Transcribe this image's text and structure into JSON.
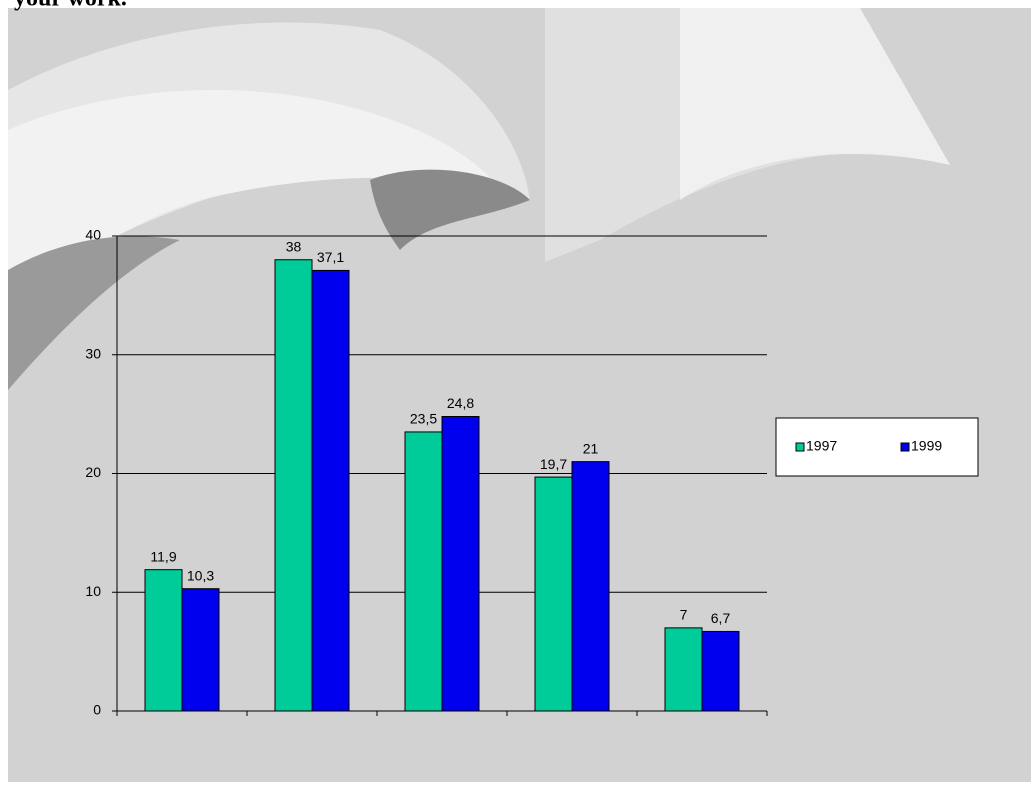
{
  "chart_data": {
    "type": "bar",
    "title": "your work.",
    "categories": [
      null,
      null,
      null,
      null,
      null
    ],
    "series": [
      {
        "name": "1997",
        "color": "#00cc99",
        "values": [
          11.9,
          38,
          23.5,
          19.7,
          7
        ],
        "value_labels": [
          "11,9",
          "38",
          "23,5",
          "19,7",
          "7"
        ]
      },
      {
        "name": "1999",
        "color": "#0000ee",
        "values": [
          10.3,
          37.1,
          24.8,
          21,
          6.7
        ],
        "value_labels": [
          "10,3",
          "37,1",
          "24,8",
          "21",
          "6,7"
        ]
      }
    ],
    "ylim": [
      0,
      40
    ],
    "yticks": [
      0,
      10,
      20,
      30,
      40
    ],
    "grid": true,
    "legend": "right"
  }
}
